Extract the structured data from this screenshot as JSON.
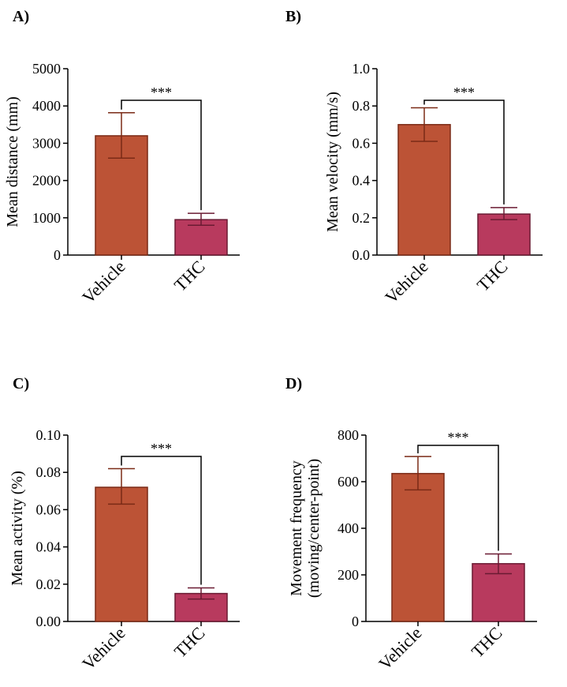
{
  "colors": {
    "vehicle_fill": "#BC5336",
    "vehicle_stroke": "#7A2A16",
    "thc_fill": "#B83A5E",
    "thc_stroke": "#6A1A32",
    "axis": "#000000"
  },
  "chart_data": [
    {
      "type": "bar",
      "panel_label": "A)",
      "categories": [
        "Vehicle",
        "THC"
      ],
      "values": [
        3200,
        950
      ],
      "error_low": [
        2600,
        800
      ],
      "error_high": [
        3820,
        1120
      ],
      "ylabel": "Mean distance (mm)",
      "ylim": [
        0,
        5000
      ],
      "yticks": [
        0,
        1000,
        2000,
        3000,
        4000,
        5000
      ],
      "ytick_labels": [
        "0",
        "1000",
        "2000",
        "3000",
        "4000",
        "5000"
      ],
      "significance": "***",
      "grid": false
    },
    {
      "type": "bar",
      "panel_label": "B)",
      "categories": [
        "Vehicle",
        "THC"
      ],
      "values": [
        0.7,
        0.22
      ],
      "error_low": [
        0.61,
        0.19
      ],
      "error_high": [
        0.79,
        0.255
      ],
      "ylabel": "Mean velocity (mm/s)",
      "ylim": [
        0,
        1.0
      ],
      "yticks": [
        0,
        0.2,
        0.4,
        0.6,
        0.8,
        1.0
      ],
      "ytick_labels": [
        "0.0",
        "0.2",
        "0.4",
        "0.6",
        "0.8",
        "1.0"
      ],
      "significance": "***",
      "grid": false
    },
    {
      "type": "bar",
      "panel_label": "C)",
      "categories": [
        "Vehicle",
        "THC"
      ],
      "values": [
        0.072,
        0.015
      ],
      "error_low": [
        0.063,
        0.012
      ],
      "error_high": [
        0.082,
        0.018
      ],
      "ylabel": "Mean activity (%)",
      "ylim": [
        0,
        0.1
      ],
      "yticks": [
        0,
        0.02,
        0.04,
        0.06,
        0.08,
        0.1
      ],
      "ytick_labels": [
        "0.00",
        "0.02",
        "0.04",
        "0.06",
        "0.08",
        "0.10"
      ],
      "significance": "***",
      "grid": false
    },
    {
      "type": "bar",
      "panel_label": "D)",
      "categories": [
        "Vehicle",
        "THC"
      ],
      "values": [
        635,
        248
      ],
      "error_low": [
        565,
        205
      ],
      "error_high": [
        708,
        290
      ],
      "ylabel": "Movement frequency",
      "ylabel_line2": "(moving/center-point)",
      "ylim": [
        0,
        800
      ],
      "yticks": [
        0,
        200,
        400,
        600,
        800
      ],
      "ytick_labels": [
        "0",
        "200",
        "400",
        "600",
        "800"
      ],
      "significance": "***",
      "grid": false
    }
  ]
}
